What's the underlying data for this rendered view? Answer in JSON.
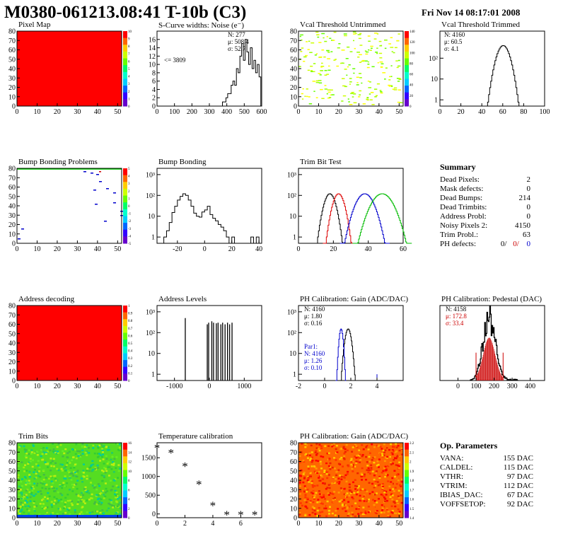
{
  "header": {
    "title": "M0380-061213.08:41 T-10b (C3)",
    "date": "Fri Nov 14 08:17:01 2008"
  },
  "colors": {
    "red": "#ff0000",
    "blue": "#0000cc",
    "green": "#00bb00",
    "bg": "#ffffff"
  },
  "chart_data": [
    {
      "id": "pixel_map",
      "type": "heatmap",
      "title": "Pixel Map",
      "xlim": [
        0,
        52
      ],
      "ylim": [
        0,
        80
      ],
      "xticks": [
        "0",
        "10",
        "20",
        "30",
        "40",
        "50"
      ],
      "yticks": [
        "0",
        "10",
        "20",
        "30",
        "40",
        "50",
        "60",
        "70",
        "80"
      ],
      "fill": "uniform-red",
      "zscale": [
        "0",
        "1",
        "2",
        "3",
        "4",
        "5",
        "6",
        "7",
        "8",
        "9",
        "10"
      ]
    },
    {
      "id": "scurve",
      "type": "bar",
      "title": "S-Curve widths: Noise (e⁻)",
      "xlim": [
        0,
        600
      ],
      "ylim": [
        0,
        18
      ],
      "xticks": [
        "0",
        "100",
        "200",
        "300",
        "400",
        "500",
        "600"
      ],
      "yticks": [
        "0",
        "2",
        "4",
        "6",
        "8",
        "10",
        "12",
        "14",
        "16"
      ],
      "stats": [
        "N:  277",
        "μ:  508.4",
        "σ:  52.7"
      ],
      "annotation": "<= 3809",
      "x": [
        380,
        390,
        400,
        410,
        420,
        430,
        440,
        450,
        460,
        470,
        480,
        490,
        500,
        510,
        520,
        530,
        540,
        550,
        560,
        570,
        580,
        590
      ],
      "values": [
        1,
        1,
        2,
        3,
        3,
        5,
        6,
        5,
        9,
        8,
        12,
        15,
        11,
        16,
        13,
        10,
        14,
        9,
        11,
        8,
        10,
        7
      ]
    },
    {
      "id": "vcal_untrimmed",
      "type": "heatmap",
      "title": "Vcal Threshold Untrimmed",
      "xlim": [
        0,
        52
      ],
      "ylim": [
        0,
        80
      ],
      "xticks": [
        "0",
        "10",
        "20",
        "30",
        "40",
        "50"
      ],
      "yticks": [
        "0",
        "10",
        "20",
        "30",
        "40",
        "50",
        "60",
        "70",
        "80"
      ],
      "fill": "sparse-green-yellow",
      "zscale": [
        "0",
        "20",
        "40",
        "60",
        "80",
        "100",
        "120",
        "140"
      ]
    },
    {
      "id": "vcal_trimmed",
      "type": "line",
      "title": "Vcal Threshold Trimmed",
      "xlim": [
        0,
        100
      ],
      "log": true,
      "ylim_log": [
        0.5,
        2000
      ],
      "xticks": [
        "0",
        "20",
        "40",
        "60",
        "80",
        "100"
      ],
      "yticks": [
        "1",
        "10",
        "10²"
      ],
      "stats": [
        "N: 4160",
        "μ:  60.5",
        "σ:  4.1"
      ],
      "mean": 60.5,
      "sigma": 4.1,
      "entries": 4160
    },
    {
      "id": "bump_problems",
      "type": "heatmap",
      "title": "Bump Bonding Problems",
      "xlim": [
        0,
        52
      ],
      "ylim": [
        0,
        80
      ],
      "xticks": [
        "0",
        "10",
        "20",
        "30",
        "40",
        "50"
      ],
      "yticks": [
        "0",
        "10",
        "20",
        "30",
        "40",
        "50",
        "60",
        "70",
        "80"
      ],
      "fill": "sparse-marks",
      "zscale": [
        "-5",
        "-4",
        "-3",
        "-2",
        "-1",
        "0",
        "1",
        "2",
        "3",
        "4",
        "5"
      ]
    },
    {
      "id": "bump_bonding",
      "type": "line",
      "title": "Bump Bonding",
      "xlim": [
        -35,
        42
      ],
      "log": true,
      "ylim_log": [
        0.5,
        2000
      ],
      "xticks": [
        "-20",
        "0",
        "20",
        "40"
      ],
      "yticks": [
        "1",
        "10",
        "10²",
        "10³"
      ],
      "x": [
        -31,
        -29,
        -27,
        -25,
        -23,
        -21,
        -19,
        -17,
        -15,
        -13,
        -11,
        -9,
        -7,
        -5,
        -3,
        -1,
        1,
        3,
        5,
        7,
        9,
        11,
        13,
        15,
        17,
        19,
        21,
        23,
        25,
        27,
        29,
        31,
        33,
        35,
        37,
        39
      ],
      "values": [
        0.5,
        1,
        2,
        5,
        15,
        30,
        60,
        90,
        120,
        100,
        60,
        30,
        14,
        10,
        9,
        16,
        20,
        30,
        12,
        8,
        6,
        4,
        3,
        2,
        1,
        0.5,
        1,
        0.5,
        0.5,
        0.5,
        0.5,
        0.5,
        0.5,
        1,
        0.5,
        1
      ]
    },
    {
      "id": "trim_bit_test",
      "type": "line",
      "title": "Trim Bit Test",
      "xlim": [
        0,
        60
      ],
      "log": true,
      "ylim_log": [
        0.5,
        2000
      ],
      "xticks": [
        "0",
        "20",
        "40",
        "60"
      ],
      "yticks": [
        "1",
        "10",
        "10²",
        "10³"
      ],
      "series": [
        {
          "color": "black",
          "mean": 18,
          "sigma": 2.2
        },
        {
          "color": "red",
          "mean": 23,
          "sigma": 2.2
        },
        {
          "color": "blue",
          "mean": 38,
          "sigma": 3.5
        },
        {
          "color": "green",
          "mean": 48,
          "sigma": 4.2
        }
      ]
    },
    {
      "id": "summary",
      "type": "table",
      "title": "Summary",
      "rows": [
        {
          "label": "Dead Pixels:",
          "value": "2"
        },
        {
          "label": "Mask defects:",
          "value": "0"
        },
        {
          "label": "Dead Bumps:",
          "value": "214"
        },
        {
          "label": "Dead Trimbits:",
          "value": "0"
        },
        {
          "label": "Address Probl:",
          "value": "0"
        },
        {
          "label": "Noisy Pixels 2:",
          "value": "4150"
        },
        {
          "label": "Trim Probl.:",
          "value": "63"
        }
      ],
      "ph_label": "PH defects:",
      "ph_values": [
        "0/",
        "0/",
        "0"
      ]
    },
    {
      "id": "address_decoding",
      "type": "heatmap",
      "title": "Address decoding",
      "xlim": [
        0,
        52
      ],
      "ylim": [
        0,
        80
      ],
      "xticks": [
        "0",
        "10",
        "20",
        "30",
        "40",
        "50"
      ],
      "yticks": [
        "0",
        "10",
        "20",
        "30",
        "40",
        "50",
        "60",
        "70",
        "80"
      ],
      "fill": "uniform-red",
      "zscale": [
        "0",
        "0.1",
        "0.2",
        "0.3",
        "0.4",
        "0.5",
        "0.6",
        "0.7",
        "0.8",
        "0.9",
        "1"
      ]
    },
    {
      "id": "address_levels",
      "type": "bar",
      "title": "Address Levels",
      "xlim": [
        -1500,
        1500
      ],
      "log": true,
      "ylim_log": [
        0.5,
        2000
      ],
      "xticks": [
        "-1000",
        "0",
        "1000"
      ],
      "yticks": [
        "1",
        "10",
        "10²",
        "10³"
      ],
      "x": [
        -690,
        -60,
        -20,
        70,
        120,
        200,
        250,
        330,
        380,
        450,
        520,
        580,
        650
      ],
      "values": [
        500,
        250,
        300,
        350,
        300,
        280,
        300,
        250,
        300,
        250,
        300,
        250,
        300
      ]
    },
    {
      "id": "ph_gain",
      "type": "line",
      "title": "PH Calibration: Gain (ADC/DAC)",
      "xlim": [
        -2,
        6
      ],
      "log": true,
      "ylim_log": [
        0.5,
        2000
      ],
      "xticks": [
        "-2",
        "0",
        "2",
        "4"
      ],
      "yticks": [
        "1",
        "10",
        "10²",
        "10³"
      ],
      "stats": [
        "N: 4160",
        "μ:  1.80",
        "σ:  0.16"
      ],
      "stats2": [
        "Par1:",
        "N:  4160",
        "μ:  1.26",
        "σ:  0.10"
      ],
      "series": [
        {
          "color": "black",
          "mean": 1.8,
          "sigma": 0.16
        },
        {
          "color": "blue",
          "mean": 1.26,
          "sigma": 0.1
        }
      ]
    },
    {
      "id": "ph_pedestal",
      "type": "bar",
      "title": "PH Calibration: Pedestal (DAC)",
      "xlim": [
        -100,
        480
      ],
      "ylim": [
        0,
        350
      ],
      "xticks": [
        "0",
        "100",
        "200",
        "300",
        "400"
      ],
      "stats": [
        "N: 4158",
        "μ:  172.8",
        "σ:  33.4"
      ],
      "mean": 172.8,
      "sigma": 33.4
    },
    {
      "id": "trim_bits",
      "type": "heatmap",
      "title": "Trim Bits",
      "xlim": [
        0,
        52
      ],
      "ylim": [
        0,
        80
      ],
      "xticks": [
        "0",
        "10",
        "20",
        "30",
        "40",
        "50"
      ],
      "yticks": [
        "0",
        "10",
        "20",
        "30",
        "40",
        "50",
        "60",
        "70",
        "80"
      ],
      "fill": "noisy-green",
      "zscale": [
        "0",
        "2",
        "4",
        "6",
        "8",
        "10",
        "12",
        "14",
        "16"
      ]
    },
    {
      "id": "temperature",
      "type": "scatter",
      "title": "Temperature calibration",
      "xlim": [
        0,
        7.5
      ],
      "ylim": [
        -100,
        1900
      ],
      "xticks": [
        "0",
        "2",
        "4",
        "6"
      ],
      "yticks": [
        "0",
        "500",
        "1000",
        "1500"
      ],
      "x": [
        0,
        1,
        2,
        3,
        4,
        5,
        6,
        7
      ],
      "values": [
        1750,
        1620,
        1260,
        780,
        210,
        -30,
        -30,
        -30
      ]
    },
    {
      "id": "ph_gain_map",
      "type": "heatmap",
      "title": "PH Calibration: Gain (ADC/DAC)",
      "xlim": [
        0,
        52
      ],
      "ylim": [
        0,
        80
      ],
      "xticks": [
        "0",
        "10",
        "20",
        "30",
        "40",
        "50"
      ],
      "yticks": [
        "0",
        "10",
        "20",
        "30",
        "40",
        "50",
        "60",
        "70",
        "80"
      ],
      "fill": "noisy-red",
      "zscale": [
        "1.4",
        "1.5",
        "1.6",
        "1.7",
        "1.8",
        "1.9",
        "2",
        "2.1",
        "2.2"
      ]
    },
    {
      "id": "op_params",
      "type": "table",
      "title": "Op. Parameters",
      "rows": [
        {
          "label": "VANA:",
          "value": "155 DAC"
        },
        {
          "label": "CALDEL:",
          "value": "115 DAC"
        },
        {
          "label": "VTHR:",
          "value": "97 DAC"
        },
        {
          "label": "VTRIM:",
          "value": "112 DAC"
        },
        {
          "label": "IBIAS_DAC:",
          "value": "67 DAC"
        },
        {
          "label": "VOFFSETOP:",
          "value": "92 DAC"
        }
      ]
    }
  ]
}
